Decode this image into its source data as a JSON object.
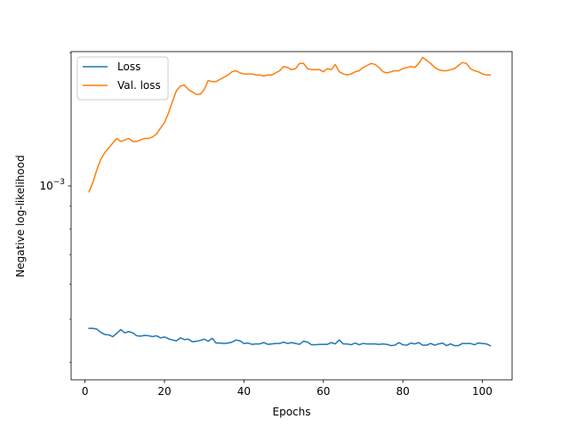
{
  "chart_data": {
    "type": "line",
    "title": "",
    "xlabel": "Epochs",
    "ylabel": "Negative log-likelihood",
    "yscale": "log",
    "xlim": [
      -3.5,
      107.5
    ],
    "ylim": [
      0.000365,
      0.00201
    ],
    "xticks": [
      0,
      20,
      40,
      60,
      80,
      100
    ],
    "xtick_labels": [
      "0",
      "20",
      "40",
      "60",
      "80",
      "100"
    ],
    "yticks": [
      0.001
    ],
    "ytick_labels": [
      "10^{-3}"
    ],
    "ytick_base": "10",
    "ytick_exponent": "−3",
    "grid": false,
    "legend": {
      "position": "top-left"
    },
    "series": [
      {
        "name": "Loss",
        "color": "#1f77b4",
        "x": [
          1,
          2,
          3,
          4,
          5,
          6,
          7,
          8,
          9,
          10,
          11,
          12,
          13,
          14,
          15,
          16,
          17,
          18,
          19,
          20,
          21,
          22,
          23,
          24,
          25,
          26,
          27,
          28,
          29,
          30,
          31,
          32,
          33,
          34,
          35,
          36,
          37,
          38,
          39,
          40,
          41,
          42,
          43,
          44,
          45,
          46,
          47,
          48,
          49,
          50,
          51,
          52,
          53,
          54,
          55,
          56,
          57,
          58,
          59,
          60,
          61,
          62,
          63,
          64,
          65,
          66,
          67,
          68,
          69,
          70,
          71,
          72,
          73,
          74,
          75,
          76,
          77,
          78,
          79,
          80,
          81,
          82,
          83,
          84,
          85,
          86,
          87,
          88,
          89,
          90,
          91,
          92,
          93,
          94,
          95,
          96,
          97,
          98,
          99,
          100,
          101,
          102
        ],
        "y": [
          0.000477,
          0.000477,
          0.000475,
          0.000467,
          0.000462,
          0.000461,
          0.000457,
          0.000465,
          0.000474,
          0.000466,
          0.000469,
          0.000466,
          0.000459,
          0.000458,
          0.00046,
          0.000459,
          0.000457,
          0.000459,
          0.000454,
          0.000456,
          0.000452,
          0.000449,
          0.000447,
          0.000454,
          0.00045,
          0.000451,
          0.000445,
          0.000446,
          0.000448,
          0.000451,
          0.000446,
          0.000453,
          0.000442,
          0.000442,
          0.000441,
          0.000442,
          0.000444,
          0.000449,
          0.000447,
          0.000441,
          0.000442,
          0.000439,
          0.00044,
          0.00044,
          0.000443,
          0.000439,
          0.00044,
          0.000441,
          0.000441,
          0.000444,
          0.000441,
          0.000443,
          0.000441,
          0.000439,
          0.000446,
          0.000444,
          0.000438,
          0.000438,
          0.000439,
          0.000439,
          0.000439,
          0.000443,
          0.00044,
          0.000449,
          0.00044,
          0.00044,
          0.000438,
          0.000442,
          0.000438,
          0.000441,
          0.00044,
          0.00044,
          0.00044,
          0.000439,
          0.00044,
          0.000439,
          0.000436,
          0.000437,
          0.000443,
          0.000438,
          0.000437,
          0.000442,
          0.00044,
          0.000443,
          0.000437,
          0.000437,
          0.000441,
          0.000437,
          0.00044,
          0.000442,
          0.000436,
          0.00044,
          0.000436,
          0.000436,
          0.000441,
          0.000441,
          0.000441,
          0.000438,
          0.000442,
          0.000441,
          0.00044,
          0.000436
        ]
      },
      {
        "name": "Val. loss",
        "color": "#ff7f0e",
        "x": [
          1,
          2,
          3,
          4,
          5,
          6,
          7,
          8,
          9,
          10,
          11,
          12,
          13,
          14,
          15,
          16,
          17,
          18,
          19,
          20,
          21,
          22,
          23,
          24,
          25,
          26,
          27,
          28,
          29,
          30,
          31,
          32,
          33,
          34,
          35,
          36,
          37,
          38,
          39,
          40,
          41,
          42,
          43,
          44,
          45,
          46,
          47,
          48,
          49,
          50,
          51,
          52,
          53,
          54,
          55,
          56,
          57,
          58,
          59,
          60,
          61,
          62,
          63,
          64,
          65,
          66,
          67,
          68,
          69,
          70,
          71,
          72,
          73,
          74,
          75,
          76,
          77,
          78,
          79,
          80,
          81,
          82,
          83,
          84,
          85,
          86,
          87,
          88,
          89,
          90,
          91,
          92,
          93,
          94,
          95,
          96,
          97,
          98,
          99,
          100,
          101,
          102
        ],
        "y": [
          0.00097,
          0.00102,
          0.00109,
          0.00115,
          0.00119,
          0.00122,
          0.00125,
          0.00128,
          0.00126,
          0.00127,
          0.00128,
          0.00126,
          0.00126,
          0.00127,
          0.00128,
          0.00128,
          0.00129,
          0.00131,
          0.00135,
          0.00139,
          0.00146,
          0.00155,
          0.00164,
          0.00168,
          0.00169,
          0.00165,
          0.00163,
          0.00161,
          0.00161,
          0.00165,
          0.00173,
          0.00172,
          0.00172,
          0.00174,
          0.00176,
          0.00178,
          0.00181,
          0.00182,
          0.0018,
          0.00179,
          0.00179,
          0.00179,
          0.00178,
          0.00178,
          0.00177,
          0.00178,
          0.00178,
          0.0018,
          0.00182,
          0.00186,
          0.00185,
          0.00183,
          0.00184,
          0.00189,
          0.00189,
          0.00184,
          0.00183,
          0.00183,
          0.00183,
          0.00181,
          0.00184,
          0.00183,
          0.00188,
          0.00181,
          0.00179,
          0.00178,
          0.00179,
          0.00181,
          0.00182,
          0.00185,
          0.00187,
          0.00189,
          0.00188,
          0.00185,
          0.00181,
          0.0018,
          0.00181,
          0.00182,
          0.00182,
          0.00184,
          0.00185,
          0.00186,
          0.00185,
          0.00189,
          0.00195,
          0.00192,
          0.00189,
          0.00185,
          0.00183,
          0.00182,
          0.00182,
          0.00183,
          0.00184,
          0.00187,
          0.0019,
          0.00189,
          0.00184,
          0.00182,
          0.00181,
          0.00179,
          0.00178,
          0.00178
        ]
      }
    ]
  }
}
